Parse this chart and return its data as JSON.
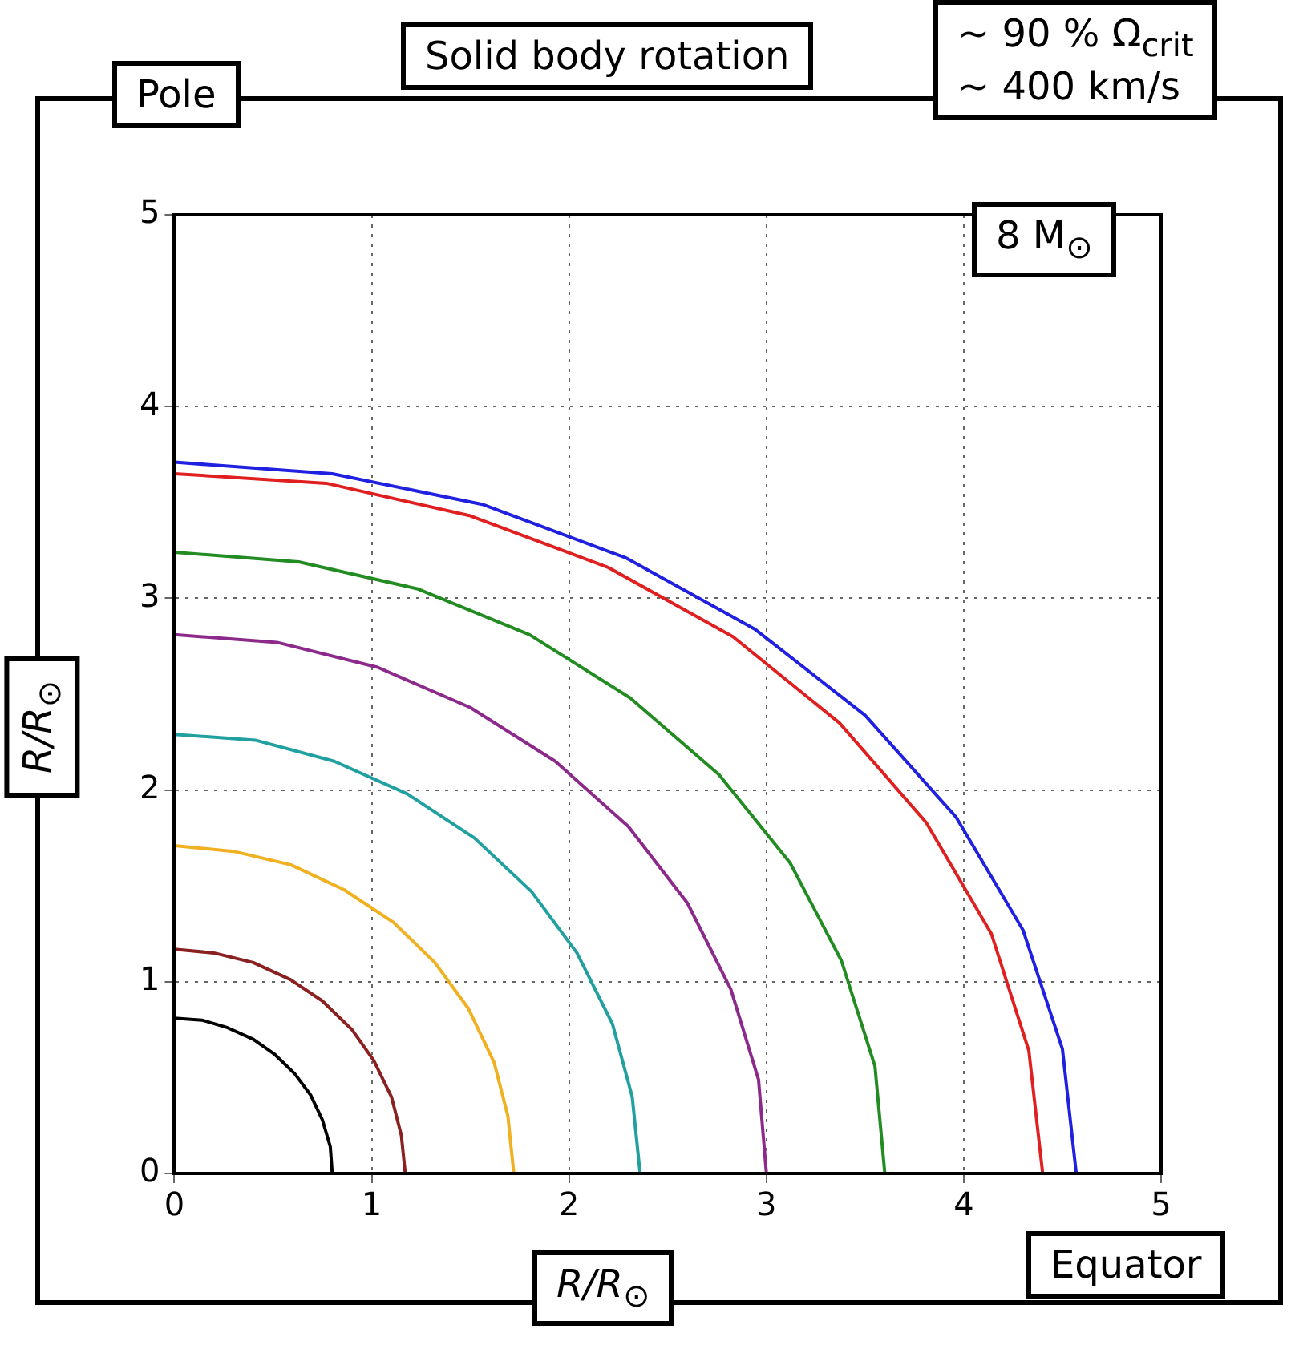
{
  "chart_data": {
    "type": "line",
    "xlabel": "R/R$_{⊙}$",
    "ylabel": "R/R$_{⊙}$",
    "annotations": [
      "Pole",
      "Solid body rotation",
      "∼ 90 % Ω$_{crit}$",
      "∼ 400 km/s",
      "8 M$_{⊙}$",
      "Equator"
    ],
    "xlim": [
      0,
      5
    ],
    "ylim": [
      0,
      5
    ],
    "xticks": [
      0,
      1,
      2,
      3,
      4,
      5
    ],
    "yticks": [
      0,
      1,
      2,
      3,
      4,
      5
    ],
    "grid": true,
    "legend": false,
    "marker": "none",
    "line_style": "solid",
    "series": [
      {
        "color": "#000000",
        "x": [
          0.8,
          0.79,
          0.75,
          0.69,
          0.61,
          0.51,
          0.4,
          0.27,
          0.14,
          0
        ],
        "values": [
          0,
          0.14,
          0.28,
          0.41,
          0.52,
          0.62,
          0.7,
          0.76,
          0.8,
          0.81
        ]
      },
      {
        "color": "#8b2020",
        "x": [
          1.17,
          1.15,
          1.1,
          1.01,
          0.9,
          0.75,
          0.59,
          0.4,
          0.2,
          0
        ],
        "values": [
          0,
          0.2,
          0.4,
          0.59,
          0.75,
          0.9,
          1.01,
          1.1,
          1.15,
          1.17
        ]
      },
      {
        "color": "#f0b020",
        "x": [
          1.72,
          1.69,
          1.62,
          1.49,
          1.32,
          1.11,
          0.86,
          0.59,
          0.3,
          0
        ],
        "values": [
          0,
          0.3,
          0.58,
          0.86,
          1.1,
          1.31,
          1.48,
          1.61,
          1.68,
          1.71
        ]
      },
      {
        "color": "#20a0a0",
        "x": [
          2.36,
          2.32,
          2.22,
          2.04,
          1.81,
          1.52,
          1.18,
          0.81,
          0.41,
          0
        ],
        "values": [
          0,
          0.4,
          0.78,
          1.15,
          1.47,
          1.75,
          1.98,
          2.15,
          2.26,
          2.29
        ]
      },
      {
        "color": "#8b2a8b",
        "x": [
          3.0,
          2.96,
          2.82,
          2.6,
          2.3,
          1.93,
          1.5,
          1.03,
          0.52,
          0
        ],
        "values": [
          0,
          0.49,
          0.96,
          1.41,
          1.81,
          2.15,
          2.43,
          2.64,
          2.77,
          2.81
        ]
      },
      {
        "color": "#228b22",
        "x": [
          3.6,
          3.55,
          3.38,
          3.12,
          2.76,
          2.31,
          1.8,
          1.23,
          0.63,
          0
        ],
        "values": [
          0,
          0.56,
          1.11,
          1.62,
          2.08,
          2.48,
          2.81,
          3.05,
          3.19,
          3.24
        ]
      },
      {
        "color": "#e02020",
        "x": [
          4.4,
          4.33,
          4.14,
          3.81,
          3.37,
          2.83,
          2.2,
          1.5,
          0.77,
          0
        ],
        "values": [
          0,
          0.64,
          1.25,
          1.83,
          2.35,
          2.8,
          3.16,
          3.43,
          3.6,
          3.65
        ]
      },
      {
        "color": "#2020e0",
        "x": [
          4.57,
          4.5,
          4.3,
          3.96,
          3.5,
          2.94,
          2.29,
          1.56,
          0.8,
          0
        ],
        "values": [
          0,
          0.65,
          1.27,
          1.86,
          2.39,
          2.84,
          3.21,
          3.49,
          3.65,
          3.71
        ]
      }
    ]
  }
}
